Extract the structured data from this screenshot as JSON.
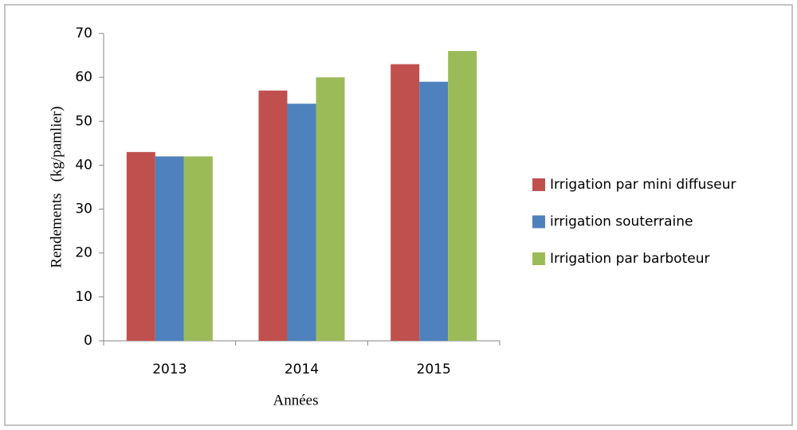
{
  "chart_data": {
    "type": "bar",
    "xlabel": "Années",
    "ylabel": "Rendements   (kg/pamlier)",
    "categories": [
      "2013",
      "2014",
      "2015"
    ],
    "series": [
      {
        "name": "Irrigation par mini diffuseur",
        "color": "#c0504d",
        "values": [
          43,
          57,
          63
        ]
      },
      {
        "name": "irrigation souterraine",
        "color": "#4f81bd",
        "values": [
          42,
          54,
          59
        ]
      },
      {
        "name": "Irrigation par barboteur",
        "color": "#9bbb59",
        "values": [
          42,
          60,
          66
        ]
      }
    ],
    "ylim": [
      0,
      70
    ],
    "yticks": [
      0,
      10,
      20,
      30,
      40,
      50,
      60,
      70
    ],
    "legend": "right"
  }
}
